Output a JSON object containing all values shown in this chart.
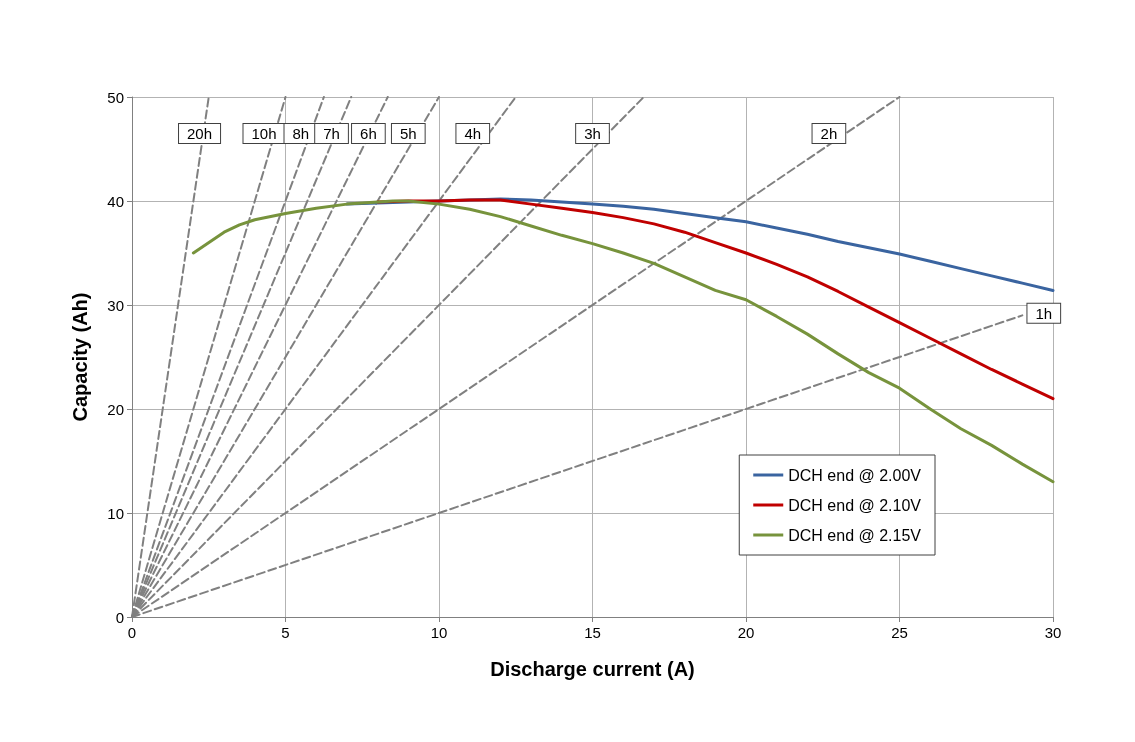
{
  "chart_data": {
    "type": "line",
    "xlabel": "Discharge current (A)",
    "ylabel": "Capacity (Ah)",
    "xlim": [
      0,
      30
    ],
    "xticks": [
      0,
      5,
      10,
      15,
      20,
      25,
      30
    ],
    "ylim": [
      0,
      50
    ],
    "yticks": [
      0,
      10,
      20,
      30,
      40,
      50
    ],
    "grid": true,
    "legend": "bottom right",
    "marker": "none",
    "series": [
      {
        "name": "DCH end @ 2.00V",
        "color": "#3a64a0",
        "x": [
          7,
          8,
          9,
          10,
          11,
          12,
          13,
          14,
          15,
          16,
          17,
          18,
          19,
          20,
          21,
          22,
          23,
          24,
          25,
          26,
          27,
          28,
          29,
          30
        ],
        "values": [
          39.7,
          39.8,
          39.9,
          40,
          40.1,
          40.2,
          40.1,
          39.9,
          39.7,
          39.5,
          39.2,
          38.8,
          38.4,
          38,
          37.4,
          36.8,
          36.1,
          35.5,
          34.9,
          34.2,
          33.5,
          32.8,
          32.1,
          31.4
        ]
      },
      {
        "name": "DCH end @ 2.10V",
        "color": "#c00000",
        "x": [
          8,
          9,
          10,
          11,
          12,
          13,
          14,
          15,
          16,
          17,
          18,
          19,
          20,
          21,
          22,
          23,
          24,
          25,
          26,
          27,
          28,
          29,
          30
        ],
        "values": [
          39.9,
          40,
          40,
          40.1,
          40.1,
          39.7,
          39.3,
          38.9,
          38.4,
          37.8,
          37,
          36,
          35,
          33.9,
          32.7,
          31.3,
          29.8,
          28.3,
          26.8,
          25.3,
          23.8,
          22.4,
          21
        ]
      },
      {
        "name": "DCH end @ 2.15V",
        "color": "#77933c",
        "x": [
          2,
          3,
          3.5,
          4,
          5,
          6,
          7,
          8,
          8.5,
          9,
          10,
          11,
          12,
          13,
          14,
          15,
          16,
          17,
          18,
          19,
          20,
          21,
          22,
          23,
          24,
          25,
          26,
          27,
          28,
          29,
          30
        ],
        "values": [
          35,
          37,
          37.7,
          38.2,
          38.8,
          39.3,
          39.7,
          39.9,
          40,
          40,
          39.7,
          39.2,
          38.5,
          37.6,
          36.7,
          35.9,
          35,
          34,
          32.7,
          31.4,
          30.5,
          28.9,
          27.2,
          25.3,
          23.5,
          22,
          20,
          18.1,
          16.5,
          14.7,
          13
        ]
      },
      {
        "color": "#808080",
        "line_style": "dashed",
        "x": [
          0,
          2.5
        ],
        "values": [
          0,
          50
        ]
      },
      {
        "color": "#808080",
        "line_style": "dashed",
        "x": [
          0,
          5
        ],
        "values": [
          0,
          50
        ]
      },
      {
        "color": "#808080",
        "line_style": "dashed",
        "x": [
          0,
          6.25
        ],
        "values": [
          0,
          50
        ]
      },
      {
        "color": "#808080",
        "line_style": "dashed",
        "x": [
          0,
          7.14
        ],
        "values": [
          0,
          50
        ]
      },
      {
        "color": "#808080",
        "line_style": "dashed",
        "x": [
          0,
          8.33
        ],
        "values": [
          0,
          50
        ]
      },
      {
        "color": "#808080",
        "line_style": "dashed",
        "x": [
          0,
          10
        ],
        "values": [
          0,
          50
        ]
      },
      {
        "color": "#808080",
        "line_style": "dashed",
        "x": [
          0,
          12.5
        ],
        "values": [
          0,
          50
        ]
      },
      {
        "color": "#808080",
        "line_style": "dashed",
        "x": [
          0,
          16.67
        ],
        "values": [
          0,
          50
        ]
      },
      {
        "color": "#808080",
        "line_style": "dashed",
        "x": [
          0,
          25
        ],
        "values": [
          0,
          50
        ]
      },
      {
        "color": "#808080",
        "line_style": "dashed",
        "x": [
          0,
          29
        ],
        "values": [
          0,
          29
        ]
      }
    ],
    "annotations": [
      {
        "text": "20h",
        "x": 2.2,
        "y": 46.5
      },
      {
        "text": "10h",
        "x": 4.3,
        "y": 46.5
      },
      {
        "text": "8h",
        "x": 5.5,
        "y": 46.5
      },
      {
        "text": "7h",
        "x": 6.5,
        "y": 46.5
      },
      {
        "text": "6h",
        "x": 7.7,
        "y": 46.5
      },
      {
        "text": "5h",
        "x": 9,
        "y": 46.5
      },
      {
        "text": "4h",
        "x": 11.1,
        "y": 46.5
      },
      {
        "text": "3h",
        "x": 15,
        "y": 46.5
      },
      {
        "text": "2h",
        "x": 22.7,
        "y": 46.5
      },
      {
        "text": "1h",
        "x": 29.7,
        "y": 29.2
      }
    ]
  }
}
